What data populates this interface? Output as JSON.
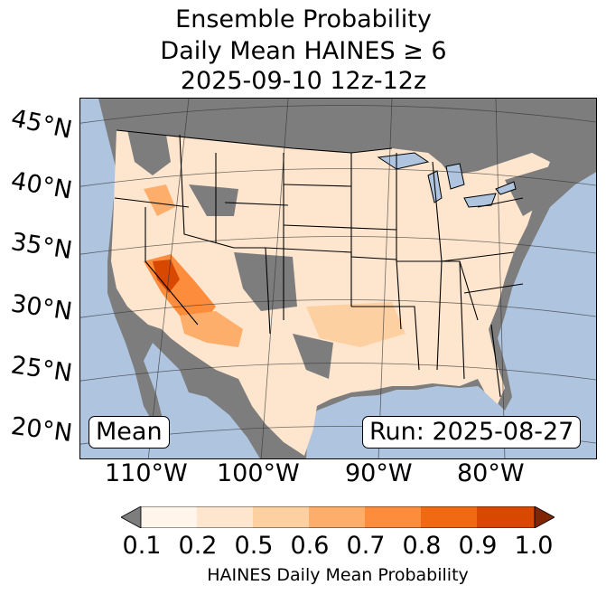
{
  "title": {
    "line1": "Ensemble Probability",
    "line2": "Daily Mean HAINES ≥ 6",
    "line3": "2025-09-10 12z-12z"
  },
  "map": {
    "lat_labels": [
      "45°N",
      "40°N",
      "35°N",
      "30°N",
      "25°N",
      "20°N"
    ],
    "lon_labels": [
      "110°W",
      "100°W",
      "90°W",
      "80°W"
    ],
    "stat_box": "Mean",
    "run_box": "Run: 2025-08-27",
    "colors": {
      "ocean": "#aec4df",
      "no_data": "#7d7d7d",
      "lakes": "#aec4df",
      "borders": "#000000"
    }
  },
  "colorbar": {
    "label": "HAINES Daily Mean Probability",
    "ticks": [
      "0.1",
      "0.2",
      "0.5",
      "0.6",
      "0.7",
      "0.8",
      "0.9",
      "1.0"
    ],
    "under_color": "#7d7d7d",
    "over_color": "#7f2704",
    "bins": [
      "#fff5eb",
      "#fee6ce",
      "#fdd0a2",
      "#fdae6b",
      "#fd8d3c",
      "#f16913",
      "#d94801"
    ]
  }
}
